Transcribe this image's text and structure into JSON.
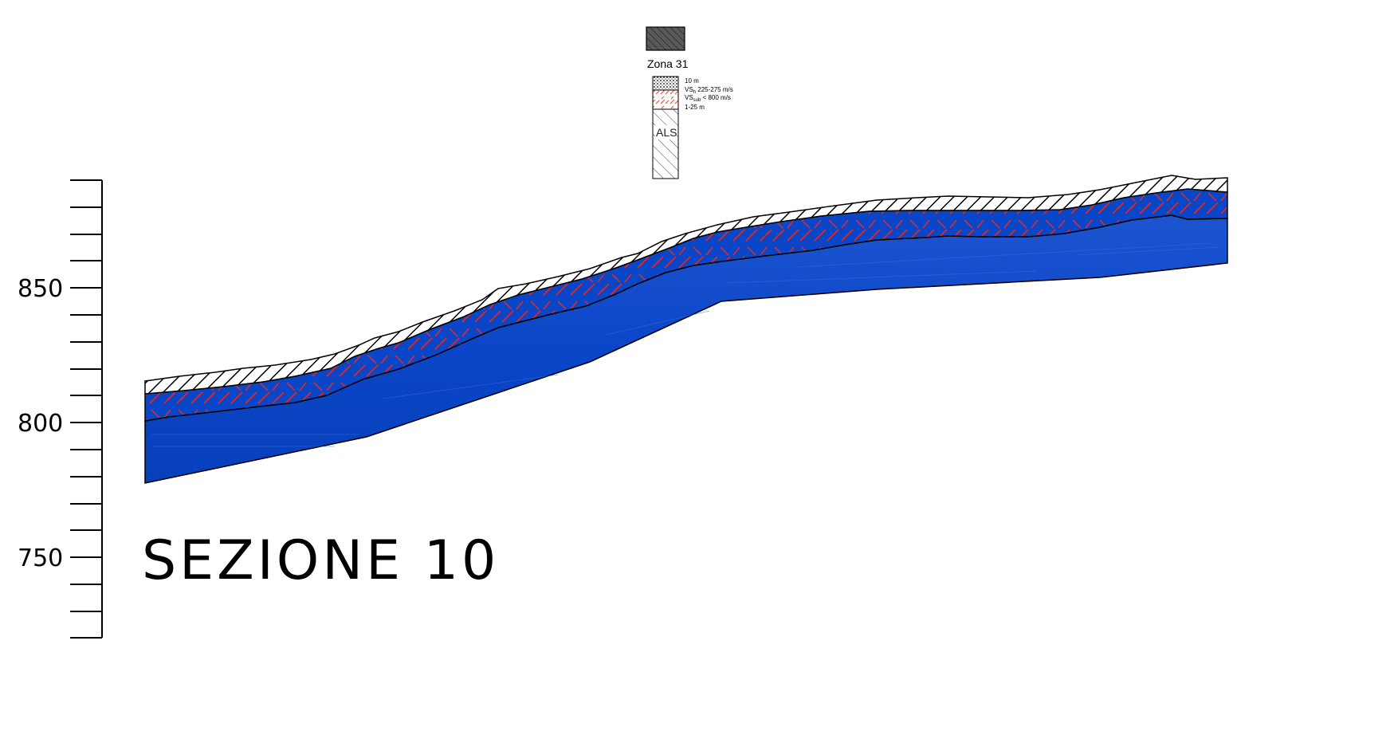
{
  "section_title": "SEZIONE 10",
  "elevation_axis": {
    "labeled_ticks": [
      "850",
      "800",
      "750"
    ]
  },
  "legend": {
    "zone_name": "Zona 31",
    "notes": {
      "thickness_top": "10 m",
      "vs_main": "VS",
      "vs_main_sub": "h",
      "vs_main_range": " 225-275 m/s",
      "vs_sub": "VS",
      "vs_sub_sub": "sub",
      "vs_sub_range": " < 800 m/s",
      "thickness_mid": "1-25 m"
    },
    "bedrock_label": "ALS"
  },
  "colors": {
    "bedrock_fill": "#0a46c8",
    "weathered_hatch": "#d42a2a",
    "cover_hatch": "#000000",
    "legend_swatch": "#5a5a5a"
  }
}
